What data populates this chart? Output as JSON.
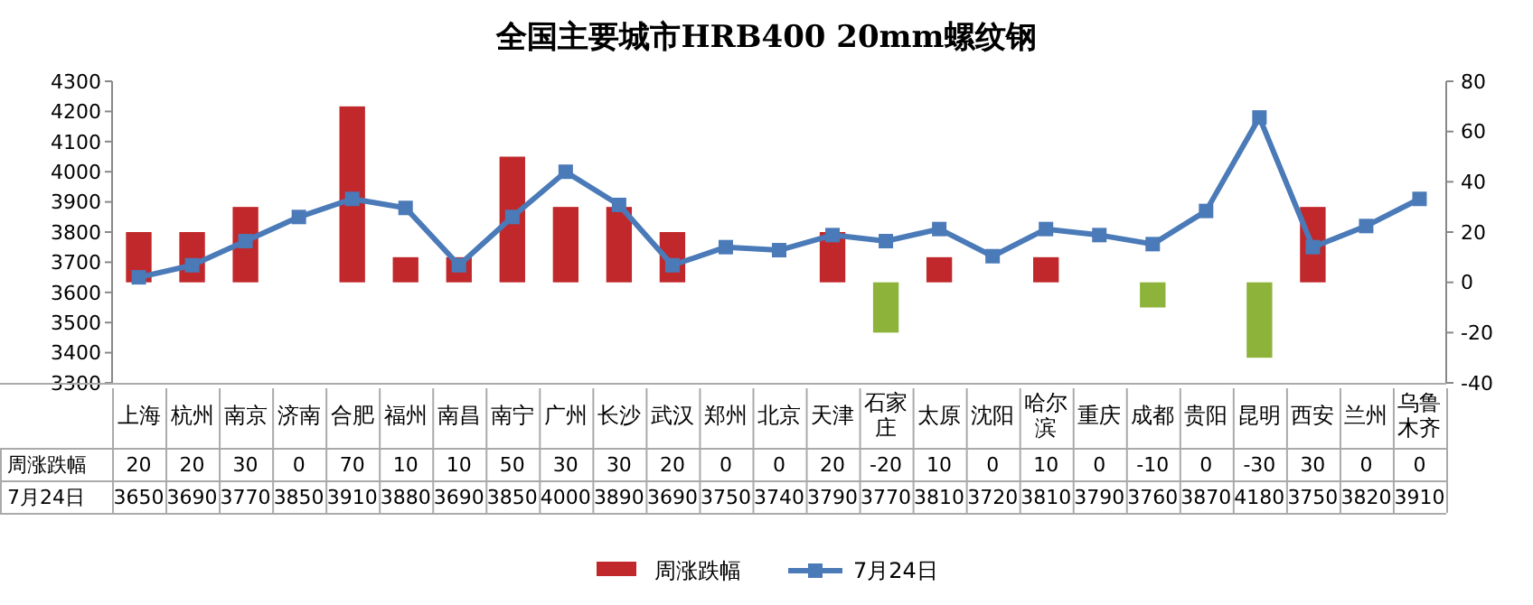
{
  "chart_data": {
    "type": "bar",
    "title": "全国主要城市HRB400 20mm螺纹钢",
    "categories": [
      "上海",
      "杭州",
      "南京",
      "济南",
      "合肥",
      "福州",
      "南昌",
      "南宁",
      "广州",
      "长沙",
      "武汉",
      "郑州",
      "北京",
      "天津",
      "石家庄",
      "太原",
      "沈阳",
      "哈尔滨",
      "重庆",
      "成都",
      "贵阳",
      "昆明",
      "西安",
      "兰州",
      "乌鲁木齐"
    ],
    "series": [
      {
        "name": "周涨跌幅",
        "axis": "y2",
        "color": "#c0282b",
        "colors": [
          "#c0282b",
          "#c0282b",
          "#c0282b",
          "#c0282b",
          "#c0282b",
          "#c0282b",
          "#c0282b",
          "#c0282b",
          "#c0282b",
          "#c0282b",
          "#c0282b",
          "#c0282b",
          "#c0282b",
          "#c0282b",
          "#8db33a",
          "#c0282b",
          "#c0282b",
          "#c0282b",
          "#c0282b",
          "#8db33a",
          "#c0282b",
          "#8db33a",
          "#c0282b",
          "#c0282b",
          "#c0282b"
        ],
        "values": [
          20,
          20,
          30,
          0,
          70,
          10,
          10,
          50,
          30,
          30,
          20,
          0,
          0,
          20,
          -20,
          10,
          0,
          10,
          0,
          -10,
          0,
          -30,
          30,
          0,
          0
        ]
      },
      {
        "name": "7月24日",
        "type": "line",
        "color": "#4a7ab8",
        "values": [
          3650,
          3690,
          3770,
          3850,
          3910,
          3880,
          3690,
          3850,
          4000,
          3890,
          3690,
          3750,
          3740,
          3790,
          3770,
          3810,
          3720,
          3810,
          3790,
          3760,
          3870,
          4180,
          3750,
          3820,
          3910
        ]
      }
    ],
    "ylim": [
      3300,
      4300
    ],
    "yticks": [
      3300,
      3400,
      3500,
      3600,
      3700,
      3800,
      3900,
      4000,
      4100,
      4200,
      4300
    ],
    "y2lim": [
      -40,
      80
    ],
    "y2ticks": [
      -40,
      -20,
      0,
      20,
      40,
      60,
      80
    ],
    "marker": "square",
    "data_labels": true,
    "legend": "bottom",
    "grid": false
  }
}
